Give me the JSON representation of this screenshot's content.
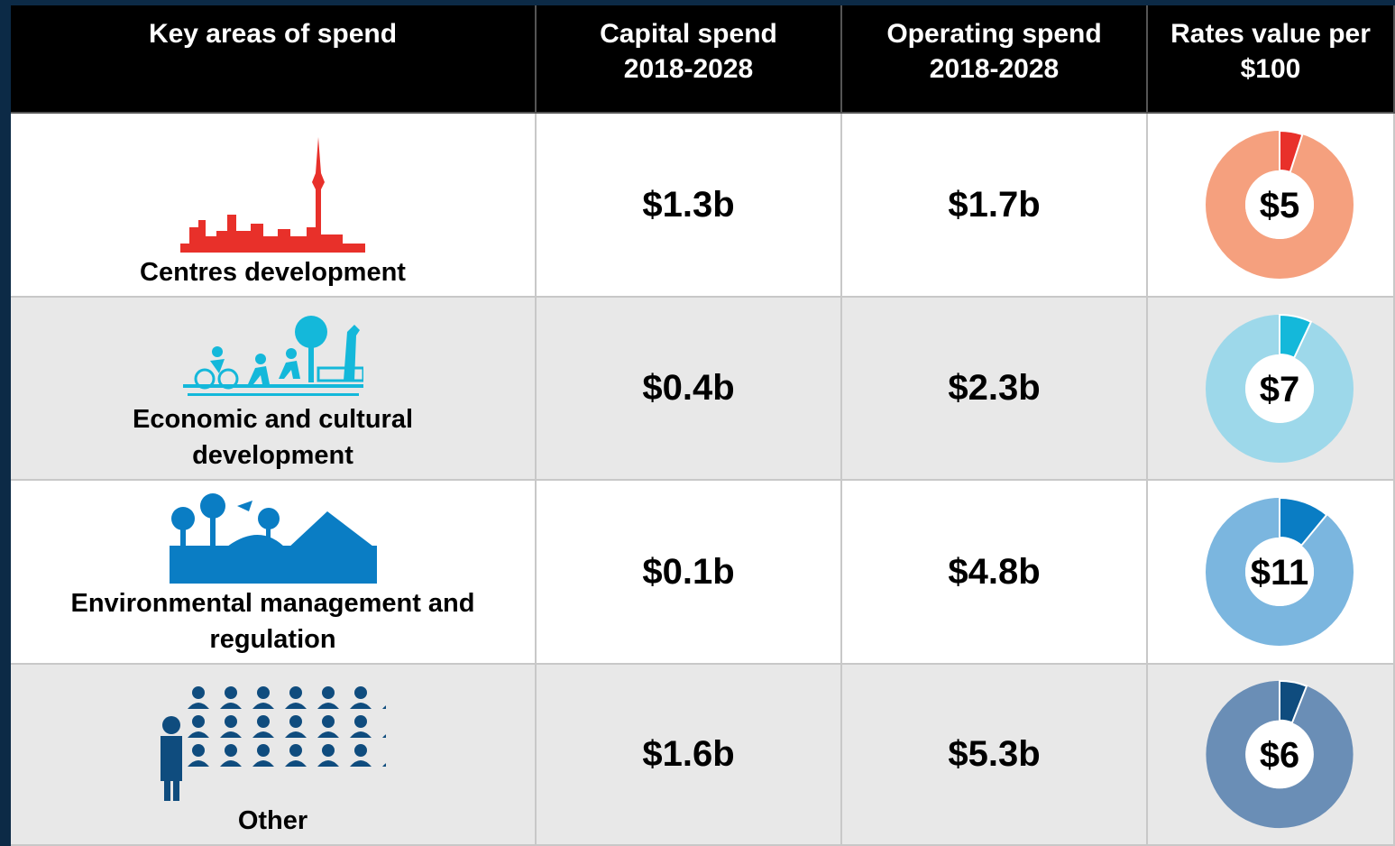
{
  "table": {
    "headers": [
      {
        "lines": [
          "Key areas of spend"
        ]
      },
      {
        "lines": [
          "Capital spend",
          "2018-2028"
        ]
      },
      {
        "lines": [
          "Operating spend",
          "2018-2028"
        ]
      },
      {
        "lines": [
          "Rates value per"
        ],
        "scale": {
          "value": 100,
          "label": "$100"
        }
      }
    ],
    "rows": [
      {
        "area": [
          "Centres development"
        ],
        "capital": "$1.3b",
        "operating": "$1.7b",
        "rate": {
          "value": 5,
          "label": "$5"
        },
        "colors": {
          "light": "#f5a07e",
          "dark": "#e8302a"
        }
      },
      {
        "area": [
          "Economic and cultural",
          "development"
        ],
        "capital": "$0.4b",
        "operating": "$2.3b",
        "rate": {
          "value": 7,
          "label": "$7"
        },
        "colors": {
          "light": "#9dd8ea",
          "dark": "#14b8da"
        }
      },
      {
        "area": [
          "Environmental management and",
          "regulation"
        ],
        "capital": "$0.1b",
        "operating": "$4.8b",
        "rate": {
          "value": 11,
          "label": "$11"
        },
        "colors": {
          "light": "#7bb6df",
          "dark": "#0a7dc4"
        }
      },
      {
        "area": [
          "Other"
        ],
        "capital": "$1.6b",
        "operating": "$5.3b",
        "rate": {
          "value": 6,
          "label": "$6"
        },
        "colors": {
          "light": "#6a8eb6",
          "dark": "#0f4c7e"
        }
      }
    ]
  }
}
